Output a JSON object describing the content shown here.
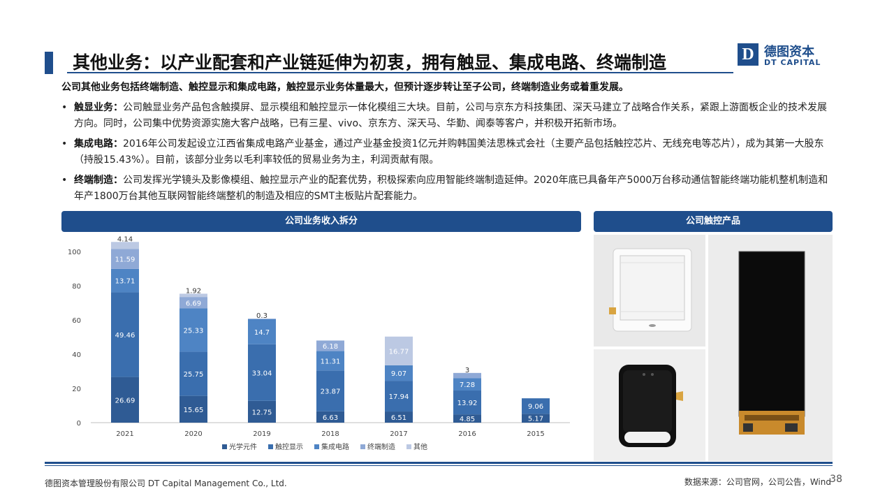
{
  "header": {
    "title": "其他业务：以产业配套和产业链延伸为初衷，拥有触显、集成电路、终端制造",
    "subtitle": "公司其他业务包括终端制造、触控显示和集成电路，触控显示业务体量最大，但预计逐步转让至子公司，终端制造业务或着重发展。"
  },
  "logo": {
    "mark": "D",
    "cn": "德图资本",
    "en": "DT CAPITAL"
  },
  "bullets": [
    {
      "dot": "•",
      "label": "触显业务：",
      "text": "公司触显业务产品包含触摸屏、显示模组和触控显示一体化模组三大块。目前，公司与京东方科技集团、深天马建立了战略合作关系，紧跟上游面板企业的技术发展方向。同时，公司集中优势资源实施大客户战略，已有三星、vivo、京东方、深天马、华勤、闻泰等客户，并积极开拓新市场。"
    },
    {
      "dot": "•",
      "label": "集成电路：",
      "text": "2016年公司发起设立江西省集成电路产业基金，通过产业基金投资1亿元并购韩国美法思株式会社（主要产品包括触控芯片、无线充电等芯片），成为其第一大股东（持股15.43%）。目前，该部分业务以毛利率较低的贸易业务为主，利润贡献有限。"
    },
    {
      "dot": "•",
      "label": "终端制造：",
      "text": "公司发挥光学镜头及影像模组、触控显示产业的配套优势，积极探索向应用智能终端制造延伸。2020年底已具备年产5000万台移动通信智能终端功能机整机制造和年产1800万台其他互联网智能终端整机的制造及相应的SMT主板贴片配套能力。"
    }
  ],
  "panels": {
    "left_title": "公司业务收入拆分",
    "right_title": "公司触控产品"
  },
  "chart_data": {
    "type": "bar",
    "stacked": true,
    "categories": [
      "2021",
      "2020",
      "2019",
      "2018",
      "2017",
      "2016",
      "2015"
    ],
    "series": [
      {
        "name": "光学元件",
        "color": "#2f5b94",
        "values": [
          26.69,
          15.65,
          12.75,
          6.63,
          6.51,
          4.85,
          5.17
        ]
      },
      {
        "name": "触控显示",
        "color": "#3a6eae",
        "values": [
          49.46,
          25.75,
          33.04,
          23.87,
          17.94,
          13.92,
          9.06
        ]
      },
      {
        "name": "集成电路",
        "color": "#4e84c4",
        "values": [
          13.71,
          25.33,
          14.7,
          11.31,
          9.07,
          7.28,
          null
        ]
      },
      {
        "name": "终端制造",
        "color": "#8fa9d6",
        "values": [
          11.59,
          6.69,
          0.3,
          6.18,
          null,
          3,
          null
        ]
      },
      {
        "name": "其他",
        "color": "#bcc9e3",
        "values": [
          4.14,
          1.92,
          null,
          null,
          16.77,
          null,
          null
        ]
      }
    ],
    "ylim": [
      0,
      100
    ],
    "yticks": [
      0,
      20,
      40,
      60,
      80,
      100
    ],
    "grid": false,
    "legend": "bottom"
  },
  "footer": {
    "company": "德图资本管理股份有限公司 DT Capital Management Co., Ltd.",
    "source": "数据来源：公司官网，公司公告，Wind",
    "page": "38"
  }
}
